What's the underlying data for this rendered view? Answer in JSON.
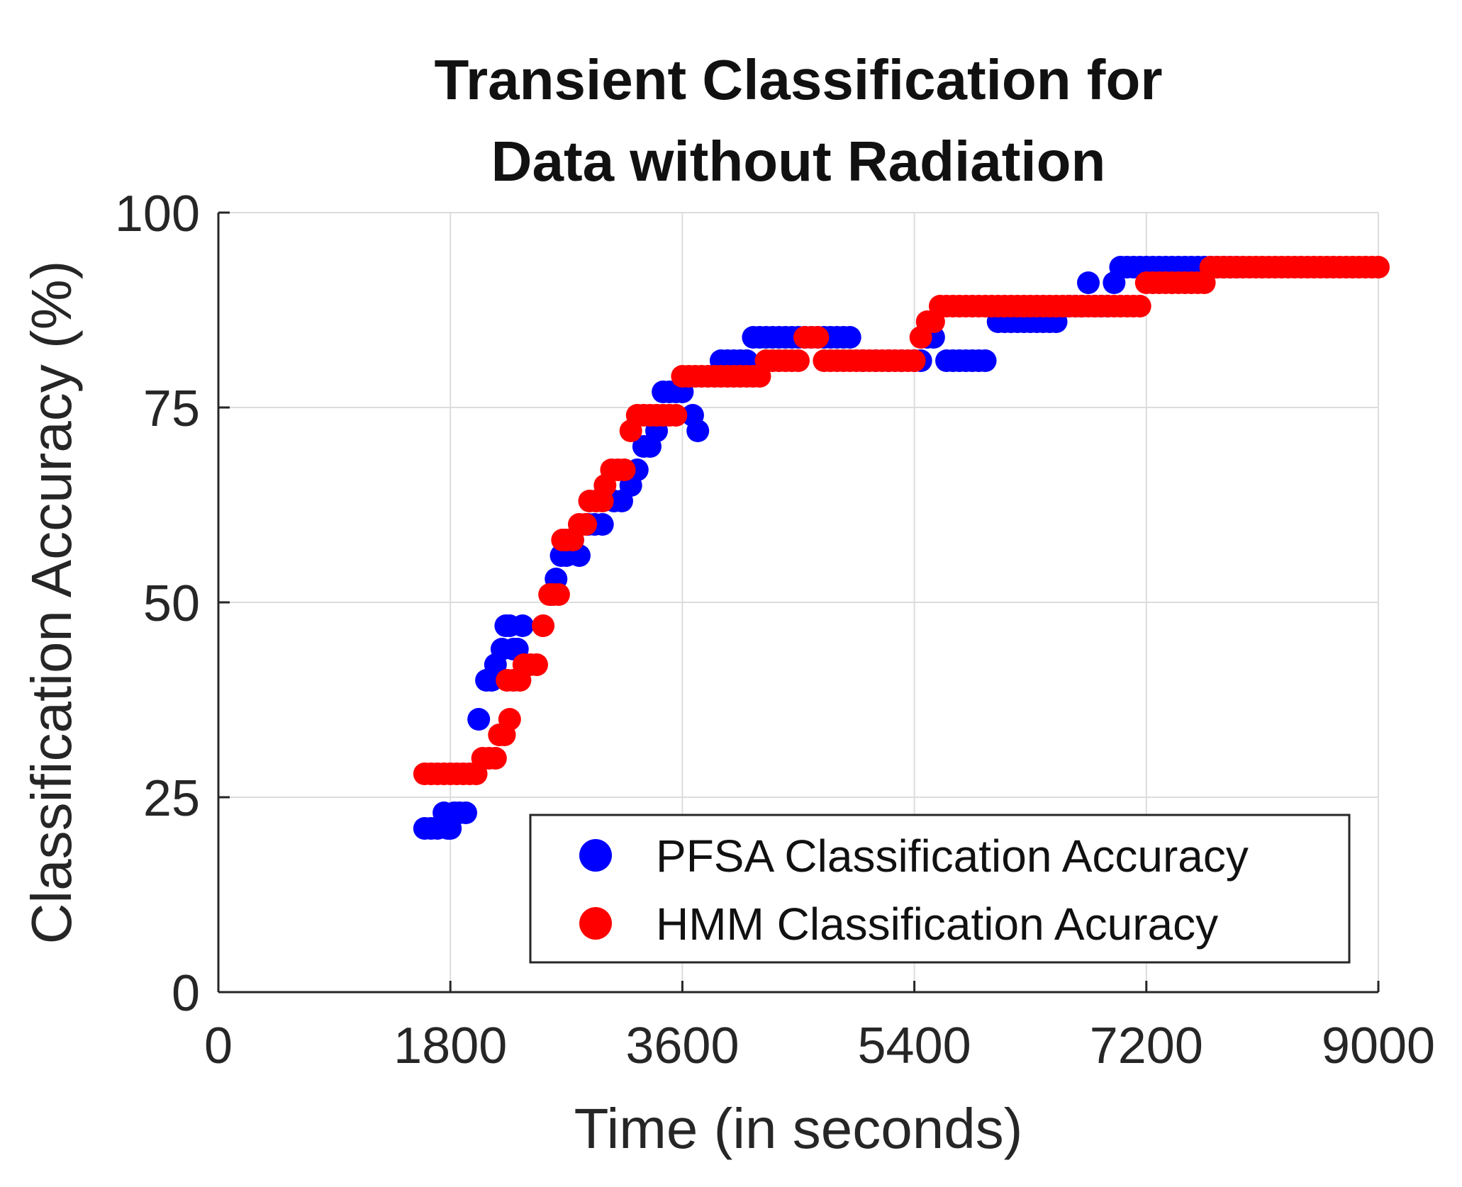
{
  "chart_data": {
    "type": "scatter",
    "title": [
      "Transient Classification for",
      "Data without Radiation"
    ],
    "xlabel": "Time (in seconds)",
    "ylabel": "Classification Accuracy (%)",
    "xlim": [
      0,
      9000
    ],
    "ylim": [
      0,
      100
    ],
    "xticks": [
      0,
      1800,
      3600,
      5400,
      7200,
      9000
    ],
    "yticks": [
      0,
      25,
      50,
      75,
      100
    ],
    "grid": true,
    "legend_position": "bottom-right",
    "series": [
      {
        "name": "PFSA Classification Accuracy",
        "color": "#0000ff",
        "points": [
          [
            1600,
            21
          ],
          [
            1650,
            21
          ],
          [
            1700,
            21
          ],
          [
            1750,
            23
          ],
          [
            1780,
            21
          ],
          [
            1800,
            21
          ],
          [
            1830,
            23
          ],
          [
            1870,
            23
          ],
          [
            1920,
            23
          ],
          [
            2020,
            35
          ],
          [
            2080,
            40
          ],
          [
            2120,
            40
          ],
          [
            2150,
            42
          ],
          [
            2200,
            44
          ],
          [
            2230,
            47
          ],
          [
            2260,
            47
          ],
          [
            2290,
            44
          ],
          [
            2320,
            44
          ],
          [
            2360,
            47
          ],
          [
            2580,
            51
          ],
          [
            2620,
            53
          ],
          [
            2660,
            56
          ],
          [
            2700,
            56
          ],
          [
            2750,
            58
          ],
          [
            2800,
            56
          ],
          [
            2870,
            60
          ],
          [
            2920,
            60
          ],
          [
            2980,
            60
          ],
          [
            3070,
            63
          ],
          [
            3130,
            63
          ],
          [
            3200,
            65
          ],
          [
            3250,
            67
          ],
          [
            3300,
            70
          ],
          [
            3350,
            70
          ],
          [
            3400,
            72
          ],
          [
            3450,
            77
          ],
          [
            3500,
            77
          ],
          [
            3550,
            77
          ],
          [
            3600,
            77
          ],
          [
            3680,
            74
          ],
          [
            3720,
            72
          ],
          [
            3900,
            81
          ],
          [
            3950,
            81
          ],
          [
            4000,
            81
          ],
          [
            4050,
            81
          ],
          [
            4100,
            81
          ],
          [
            4150,
            84
          ],
          [
            4200,
            84
          ],
          [
            4250,
            84
          ],
          [
            4300,
            84
          ],
          [
            4350,
            84
          ],
          [
            4400,
            84
          ],
          [
            4450,
            84
          ],
          [
            4500,
            84
          ],
          [
            4550,
            84
          ],
          [
            4600,
            84
          ],
          [
            4650,
            84
          ],
          [
            4700,
            84
          ],
          [
            4750,
            84
          ],
          [
            4800,
            84
          ],
          [
            4850,
            84
          ],
          [
            4900,
            84
          ],
          [
            5000,
            81
          ],
          [
            5100,
            81
          ],
          [
            5200,
            81
          ],
          [
            5300,
            81
          ],
          [
            5400,
            81
          ],
          [
            5450,
            81
          ],
          [
            5500,
            84
          ],
          [
            5550,
            84
          ],
          [
            5650,
            81
          ],
          [
            5700,
            81
          ],
          [
            5750,
            81
          ],
          [
            5800,
            81
          ],
          [
            5850,
            81
          ],
          [
            5900,
            81
          ],
          [
            5950,
            81
          ],
          [
            6050,
            86
          ],
          [
            6100,
            86
          ],
          [
            6150,
            86
          ],
          [
            6200,
            86
          ],
          [
            6250,
            86
          ],
          [
            6300,
            86
          ],
          [
            6350,
            86
          ],
          [
            6400,
            86
          ],
          [
            6450,
            86
          ],
          [
            6500,
            86
          ],
          [
            6600,
            88
          ],
          [
            6650,
            88
          ],
          [
            6700,
            88
          ],
          [
            6750,
            91
          ],
          [
            6800,
            88
          ],
          [
            6850,
            88
          ],
          [
            6900,
            88
          ],
          [
            6950,
            91
          ],
          [
            7000,
            93
          ],
          [
            7050,
            93
          ],
          [
            7100,
            93
          ],
          [
            7150,
            93
          ],
          [
            7200,
            93
          ],
          [
            7250,
            93
          ],
          [
            7300,
            93
          ],
          [
            7350,
            93
          ],
          [
            7400,
            93
          ],
          [
            7450,
            93
          ],
          [
            7500,
            93
          ],
          [
            7550,
            93
          ],
          [
            7600,
            93
          ],
          [
            7650,
            93
          ],
          [
            7700,
            93
          ],
          [
            7750,
            93
          ],
          [
            7800,
            93
          ],
          [
            7850,
            93
          ],
          [
            7900,
            93
          ]
        ]
      },
      {
        "name": "HMM Classification Acuracy",
        "color": "#ff0000",
        "points": [
          [
            1600,
            28
          ],
          [
            1650,
            28
          ],
          [
            1700,
            28
          ],
          [
            1750,
            28
          ],
          [
            1800,
            28
          ],
          [
            1850,
            28
          ],
          [
            1900,
            28
          ],
          [
            1950,
            28
          ],
          [
            2000,
            28
          ],
          [
            2050,
            30
          ],
          [
            2100,
            30
          ],
          [
            2150,
            30
          ],
          [
            2180,
            33
          ],
          [
            2220,
            33
          ],
          [
            2260,
            35
          ],
          [
            2240,
            40
          ],
          [
            2290,
            40
          ],
          [
            2340,
            40
          ],
          [
            2370,
            42
          ],
          [
            2420,
            42
          ],
          [
            2470,
            42
          ],
          [
            2520,
            47
          ],
          [
            2570,
            51
          ],
          [
            2600,
            51
          ],
          [
            2640,
            51
          ],
          [
            2670,
            58
          ],
          [
            2700,
            58
          ],
          [
            2750,
            58
          ],
          [
            2800,
            60
          ],
          [
            2850,
            60
          ],
          [
            2880,
            63
          ],
          [
            2930,
            63
          ],
          [
            2980,
            63
          ],
          [
            3000,
            65
          ],
          [
            3050,
            67
          ],
          [
            3100,
            67
          ],
          [
            3150,
            67
          ],
          [
            3200,
            72
          ],
          [
            3250,
            74
          ],
          [
            3300,
            74
          ],
          [
            3350,
            74
          ],
          [
            3400,
            74
          ],
          [
            3450,
            74
          ],
          [
            3500,
            74
          ],
          [
            3550,
            74
          ],
          [
            3600,
            79
          ],
          [
            3650,
            79
          ],
          [
            3700,
            79
          ],
          [
            3750,
            79
          ],
          [
            3800,
            79
          ],
          [
            3850,
            79
          ],
          [
            3900,
            79
          ],
          [
            3950,
            79
          ],
          [
            4000,
            79
          ],
          [
            4050,
            79
          ],
          [
            4100,
            79
          ],
          [
            4150,
            79
          ],
          [
            4200,
            79
          ],
          [
            4250,
            81
          ],
          [
            4300,
            81
          ],
          [
            4350,
            81
          ],
          [
            4400,
            81
          ],
          [
            4450,
            81
          ],
          [
            4500,
            81
          ],
          [
            4550,
            84
          ],
          [
            4600,
            84
          ],
          [
            4650,
            84
          ],
          [
            4700,
            81
          ],
          [
            4750,
            81
          ],
          [
            4800,
            81
          ],
          [
            4850,
            81
          ],
          [
            4900,
            81
          ],
          [
            4950,
            81
          ],
          [
            5000,
            81
          ],
          [
            5050,
            81
          ],
          [
            5100,
            81
          ],
          [
            5150,
            81
          ],
          [
            5200,
            81
          ],
          [
            5250,
            81
          ],
          [
            5300,
            81
          ],
          [
            5350,
            81
          ],
          [
            5400,
            81
          ],
          [
            5450,
            84
          ],
          [
            5500,
            86
          ],
          [
            5550,
            86
          ],
          [
            5600,
            88
          ],
          [
            5650,
            88
          ],
          [
            5700,
            88
          ],
          [
            5750,
            88
          ],
          [
            5800,
            88
          ],
          [
            5850,
            88
          ],
          [
            5900,
            88
          ],
          [
            5950,
            88
          ],
          [
            6000,
            88
          ],
          [
            6050,
            88
          ],
          [
            6100,
            88
          ],
          [
            6150,
            88
          ],
          [
            6200,
            88
          ],
          [
            6250,
            88
          ],
          [
            6300,
            88
          ],
          [
            6350,
            88
          ],
          [
            6400,
            88
          ],
          [
            6450,
            88
          ],
          [
            6500,
            88
          ],
          [
            6550,
            88
          ],
          [
            6600,
            88
          ],
          [
            6650,
            88
          ],
          [
            6700,
            88
          ],
          [
            6750,
            88
          ],
          [
            6800,
            88
          ],
          [
            6850,
            88
          ],
          [
            6900,
            88
          ],
          [
            6950,
            88
          ],
          [
            7000,
            88
          ],
          [
            7050,
            88
          ],
          [
            7100,
            88
          ],
          [
            7150,
            88
          ],
          [
            7200,
            91
          ],
          [
            7250,
            91
          ],
          [
            7300,
            91
          ],
          [
            7350,
            91
          ],
          [
            7400,
            91
          ],
          [
            7450,
            91
          ],
          [
            7500,
            91
          ],
          [
            7550,
            91
          ],
          [
            7600,
            91
          ],
          [
            7650,
            91
          ],
          [
            7700,
            93
          ],
          [
            7750,
            93
          ],
          [
            7800,
            93
          ],
          [
            7850,
            93
          ],
          [
            7900,
            93
          ],
          [
            7950,
            93
          ],
          [
            8000,
            93
          ],
          [
            8050,
            93
          ],
          [
            8100,
            93
          ],
          [
            8150,
            93
          ],
          [
            8200,
            93
          ],
          [
            8250,
            93
          ],
          [
            8300,
            93
          ],
          [
            8350,
            93
          ],
          [
            8400,
            93
          ],
          [
            8450,
            93
          ],
          [
            8500,
            93
          ],
          [
            8550,
            93
          ],
          [
            8600,
            93
          ],
          [
            8650,
            93
          ],
          [
            8700,
            93
          ],
          [
            8750,
            93
          ],
          [
            8800,
            93
          ],
          [
            8850,
            93
          ],
          [
            8900,
            93
          ],
          [
            8950,
            93
          ],
          [
            9000,
            93
          ]
        ]
      }
    ]
  }
}
